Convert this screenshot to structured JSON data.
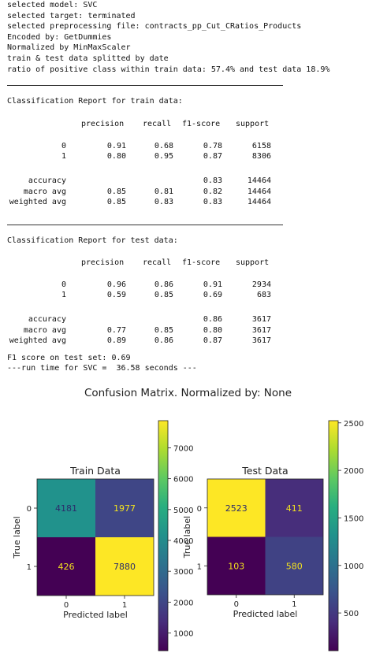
{
  "log_lines": [
    "selected model: SVC",
    "selected target: terminated",
    "selected preprocessing file: contracts_pp_Cut_CRatios_Products",
    "Encoded by: GetDummies",
    "Normalized by MinMaxScaler",
    "train & test data splitted by date",
    "ratio of positive class within train data: 57.4% and test data 18.9%"
  ],
  "train_report": {
    "title": "Classification Report for train data:",
    "headers": [
      "precision",
      "recall",
      "f1-score",
      "support"
    ],
    "rows": [
      {
        "label": "0",
        "precision": "0.91",
        "recall": "0.68",
        "f1": "0.78",
        "support": "6158"
      },
      {
        "label": "1",
        "precision": "0.80",
        "recall": "0.95",
        "f1": "0.87",
        "support": "8306"
      },
      {
        "label": "accuracy",
        "precision": "",
        "recall": "",
        "f1": "0.83",
        "support": "14464"
      },
      {
        "label": "macro avg",
        "precision": "0.85",
        "recall": "0.81",
        "f1": "0.82",
        "support": "14464"
      },
      {
        "label": "weighted avg",
        "precision": "0.85",
        "recall": "0.83",
        "f1": "0.83",
        "support": "14464"
      }
    ]
  },
  "test_report": {
    "title": "Classification Report for test data:",
    "headers": [
      "precision",
      "recall",
      "f1-score",
      "support"
    ],
    "rows": [
      {
        "label": "0",
        "precision": "0.96",
        "recall": "0.86",
        "f1": "0.91",
        "support": "2934"
      },
      {
        "label": "1",
        "precision": "0.59",
        "recall": "0.85",
        "f1": "0.69",
        "support": "683"
      },
      {
        "label": "accuracy",
        "precision": "",
        "recall": "",
        "f1": "0.86",
        "support": "3617"
      },
      {
        "label": "macro avg",
        "precision": "0.77",
        "recall": "0.85",
        "f1": "0.80",
        "support": "3617"
      },
      {
        "label": "weighted avg",
        "precision": "0.89",
        "recall": "0.86",
        "f1": "0.87",
        "support": "3617"
      }
    ]
  },
  "f1_line": "F1 score on test set: 0.69",
  "runtime_line": "---run time for SVC =  36.58 seconds ---",
  "figure_title": "Confusion Matrix. Normalized by: None",
  "chart_data": [
    {
      "type": "heatmap",
      "title": "Train Data",
      "xlabel": "Predicted label",
      "ylabel": "True label",
      "x_ticks": [
        "0",
        "1"
      ],
      "y_ticks": [
        "0",
        "1"
      ],
      "values": [
        [
          4181,
          1977
        ],
        [
          426,
          7880
        ]
      ],
      "colormap": "viridis",
      "colorbar_range": [
        426,
        7880
      ],
      "colorbar_ticks": [
        "1000",
        "2000",
        "3000",
        "4000",
        "5000",
        "6000",
        "7000"
      ]
    },
    {
      "type": "heatmap",
      "title": "Test Data",
      "xlabel": "Predicted label",
      "ylabel": "True label",
      "x_ticks": [
        "0",
        "1"
      ],
      "y_ticks": [
        "0",
        "1"
      ],
      "values": [
        [
          2523,
          411
        ],
        [
          103,
          580
        ]
      ],
      "colormap": "viridis",
      "colorbar_range": [
        103,
        2523
      ],
      "colorbar_ticks": [
        "500",
        "1000",
        "1500",
        "2000",
        "2500"
      ]
    }
  ]
}
